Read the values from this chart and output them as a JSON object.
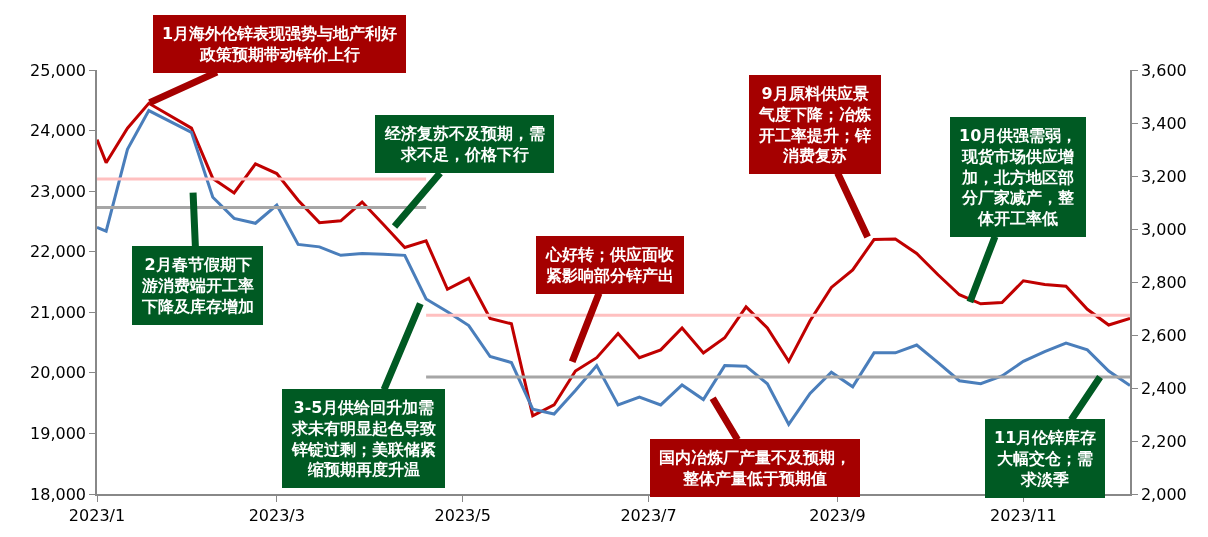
{
  "chart_data": {
    "type": "line",
    "x": [
      "2023-01-01",
      "2023-01-04",
      "2023-01-11",
      "2023-01-18",
      "2023-02-01",
      "2023-02-08",
      "2023-02-15",
      "2023-02-22",
      "2023-03-01",
      "2023-03-08",
      "2023-03-15",
      "2023-03-22",
      "2023-03-29",
      "2023-04-05",
      "2023-04-12",
      "2023-04-19",
      "2023-04-26",
      "2023-05-03",
      "2023-05-10",
      "2023-05-17",
      "2023-05-24",
      "2023-05-31",
      "2023-06-07",
      "2023-06-14",
      "2023-06-21",
      "2023-06-28",
      "2023-07-05",
      "2023-07-12",
      "2023-07-19",
      "2023-07-26",
      "2023-08-02",
      "2023-08-09",
      "2023-08-16",
      "2023-08-23",
      "2023-08-30",
      "2023-09-06",
      "2023-09-13",
      "2023-09-20",
      "2023-09-27",
      "2023-10-04",
      "2023-10-11",
      "2023-10-18",
      "2023-10-25",
      "2023-11-01",
      "2023-11-08",
      "2023-11-15",
      "2023-11-22",
      "2023-11-29",
      "2023-12-06"
    ],
    "series": [
      {
        "color": "#c00000",
        "values": [
          23850,
          23470,
          24040,
          24450,
          24040,
          23210,
          22970,
          23450,
          23290,
          22850,
          22480,
          22510,
          22820,
          22450,
          22070,
          22180,
          21380,
          21560,
          20900,
          20810,
          19290,
          19470,
          20030,
          20250,
          20650,
          20250,
          20380,
          20740,
          20330,
          20580,
          21090,
          20740,
          20190,
          20860,
          21410,
          21700,
          22200,
          22210,
          21970,
          21620,
          21290,
          21140,
          21160,
          21520,
          21460,
          21430,
          21050,
          20790,
          20900
        ]
      },
      {
        "color": "#4a7ebb",
        "values": [
          22400,
          22340,
          23690,
          24330,
          23970,
          22900,
          22550,
          22470,
          22770,
          22120,
          22080,
          21940,
          21970,
          21960,
          21940,
          21220,
          21010,
          20780,
          20270,
          20170,
          19400,
          19320,
          19710,
          20120,
          19470,
          19600,
          19470,
          19800,
          19560,
          20120,
          20110,
          19820,
          19150,
          19660,
          20010,
          19770,
          20330,
          20330,
          20460,
          20170,
          19870,
          19820,
          19950,
          20190,
          20350,
          20490,
          20380,
          20030,
          19790
        ]
      },
      {
        "type": "line",
        "color": "#ffc0c0",
        "x": [
          "2023-01-01",
          "2023-04-19"
        ],
        "values": [
          23200,
          23200
        ]
      },
      {
        "type": "line",
        "color": "#ffc0c0",
        "x": [
          "2023-04-19",
          "2023-12-06"
        ],
        "values": [
          20950,
          20950
        ]
      },
      {
        "type": "line",
        "color": "#a6a6a6",
        "x": [
          "2023-01-01",
          "2023-04-19"
        ],
        "values": [
          22730,
          22730
        ]
      },
      {
        "type": "line",
        "color": "#a6a6a6",
        "x": [
          "2023-04-19",
          "2023-12-06"
        ],
        "values": [
          19930,
          19930
        ]
      }
    ],
    "xlim": [
      "2023-01-01",
      "2023-12-06"
    ],
    "xticks": [
      {
        "value": "2023-01-01",
        "label": "2023/1"
      },
      {
        "value": "2023-03-01",
        "label": "2023/3"
      },
      {
        "value": "2023-05-01",
        "label": "2023/5"
      },
      {
        "value": "2023-07-01",
        "label": "2023/7"
      },
      {
        "value": "2023-09-01",
        "label": "2023/9"
      },
      {
        "value": "2023-11-01",
        "label": "2023/11"
      }
    ],
    "ylim": [
      18000,
      25000
    ],
    "yticks": [
      {
        "value": 18000,
        "label": "18,000"
      },
      {
        "value": 19000,
        "label": "19,000"
      },
      {
        "value": 20000,
        "label": "20,000"
      },
      {
        "value": 21000,
        "label": "21,000"
      },
      {
        "value": 22000,
        "label": "22,000"
      },
      {
        "value": 23000,
        "label": "23,000"
      },
      {
        "value": 24000,
        "label": "24,000"
      },
      {
        "value": 25000,
        "label": "25,000"
      }
    ],
    "y2lim": [
      2000,
      3600
    ],
    "y2ticks": [
      {
        "value": 2000,
        "label": "2,000"
      },
      {
        "value": 2200,
        "label": "2,200"
      },
      {
        "value": 2400,
        "label": "2,400"
      },
      {
        "value": 2600,
        "label": "2,600"
      },
      {
        "value": 2800,
        "label": "2,800"
      },
      {
        "value": 3000,
        "label": "3,000"
      },
      {
        "value": 3200,
        "label": "3,200"
      },
      {
        "value": 3400,
        "label": "3,400"
      },
      {
        "value": 3600,
        "label": "3,600"
      }
    ],
    "marker": "none",
    "line_style": "solid",
    "annotations": [
      "1月海外伦锌表现强势与地产利好政策预期带动锌价上行",
      "2月春节假期下游消费端开工率下降及库存增加",
      "经济复苏不及预期，需求不足，价格下行",
      "3-5月供给回升加需求未有明显起色导致锌锭过剩；美联储紧缩预期再度升温",
      "心好转；供应面收紧影响部分锌产出",
      "国内冶炼厂产量不及预期，整体产量低于预期值",
      "9月原料供应景气度下降；冶炼开工率提升；锌消费复苏",
      "10月供强需弱，现货市场供应增加，北方地区部分厂家减产，整体开工率低",
      "11月伦锌库存大幅交仓；需求淡季"
    ]
  }
}
